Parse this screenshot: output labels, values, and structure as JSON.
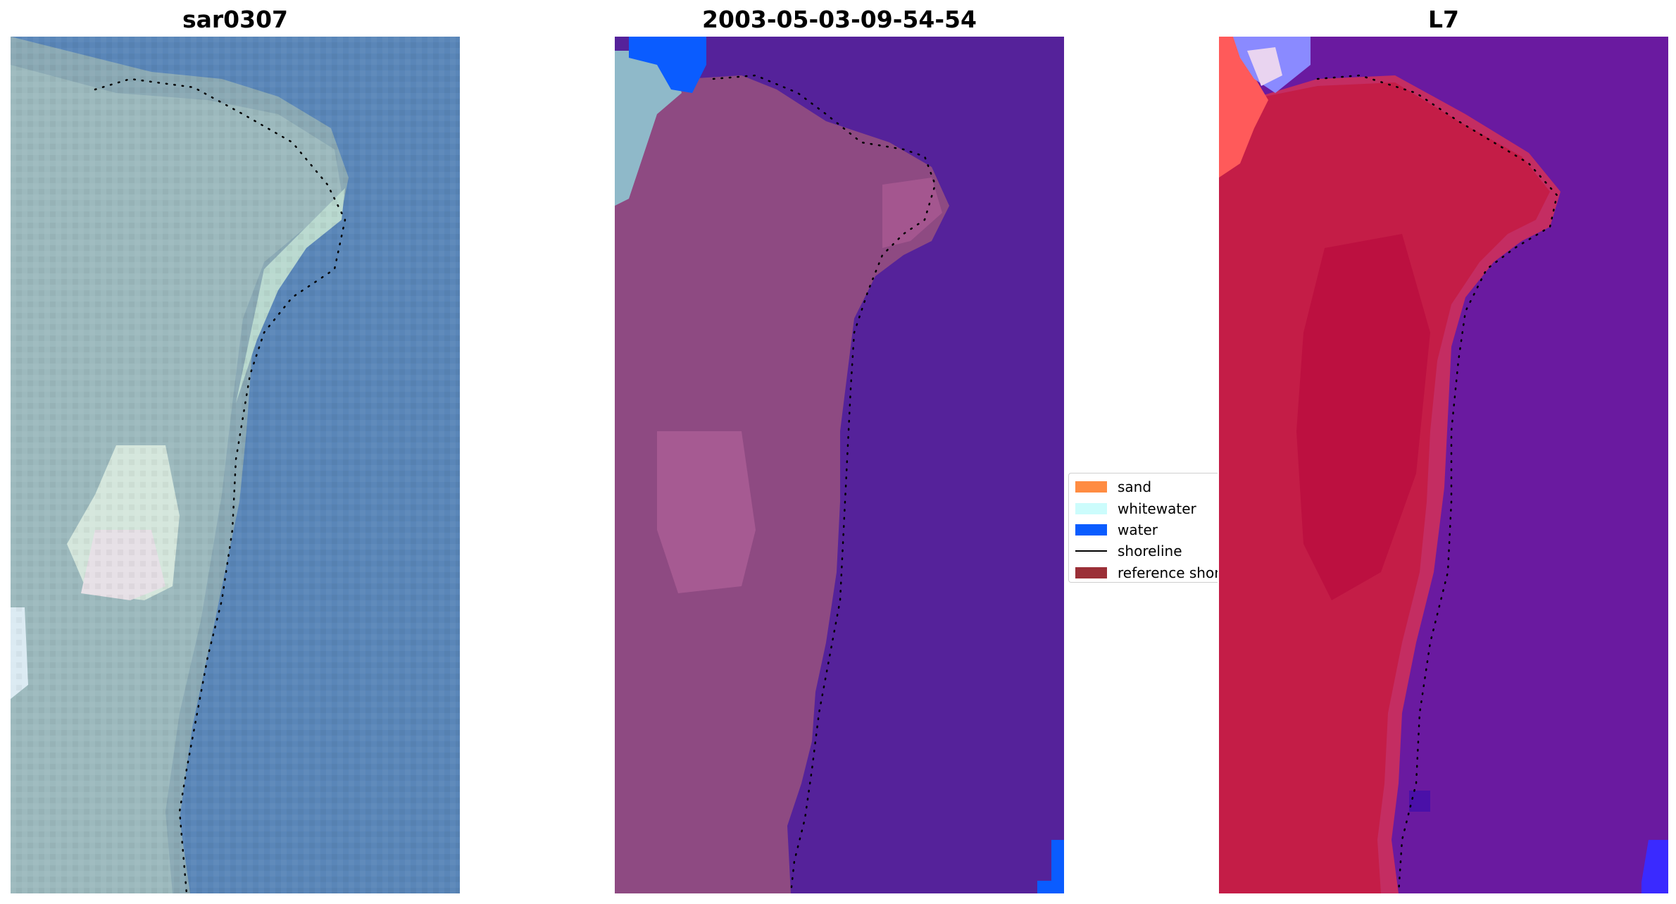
{
  "panels": [
    {
      "title": "sar0307"
    },
    {
      "title": "2003-05-03-09-54-54"
    },
    {
      "title": "L7"
    }
  ],
  "legend": {
    "items": [
      {
        "label": "sand",
        "kind": "patch",
        "color": "#ff8c42"
      },
      {
        "label": "whitewater",
        "kind": "patch",
        "color": "#ccfcfc"
      },
      {
        "label": "water",
        "kind": "patch",
        "color": "#0a5cff"
      },
      {
        "label": "shoreline",
        "kind": "line",
        "color": "#000000"
      },
      {
        "label": "reference shoreline",
        "kind": "patch",
        "color": "#9b2f37"
      }
    ]
  },
  "colors": {
    "rgb_sand": "#9fc3c2",
    "rgb_water": "#5a86b8",
    "classified_land": "#8e4a82",
    "classified_water": "#55229a",
    "index_land": "#c41d47",
    "index_water": "#6a1aa0"
  }
}
